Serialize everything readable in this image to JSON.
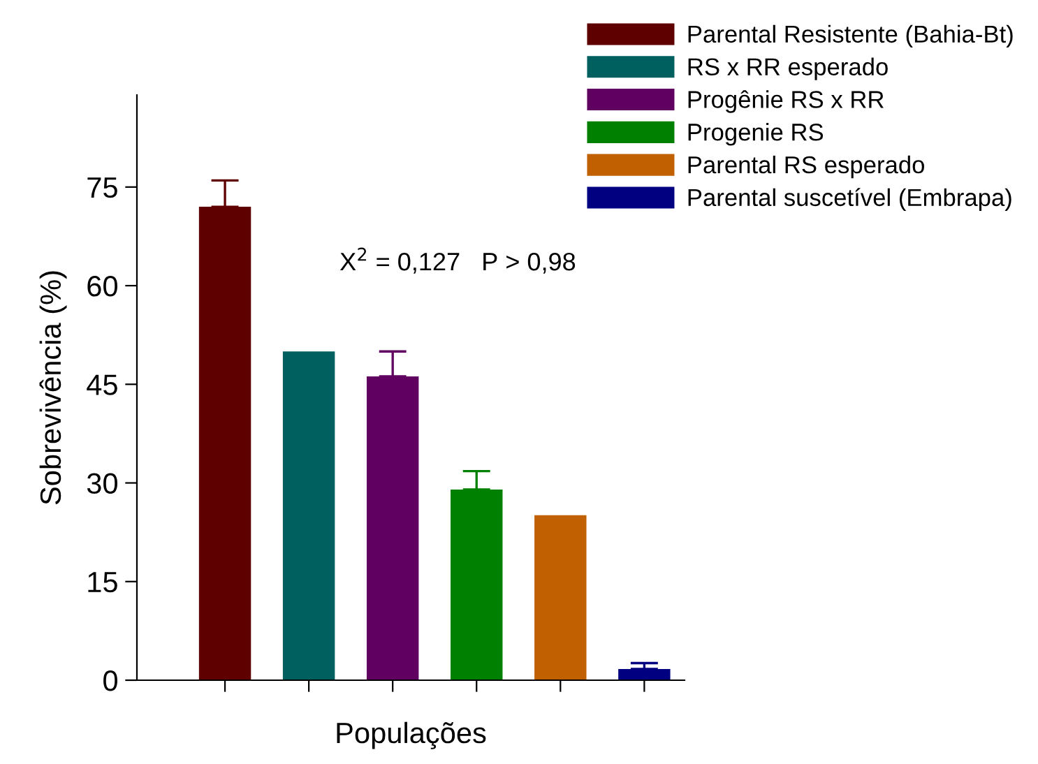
{
  "chart_data": {
    "type": "bar",
    "xlabel": "Populações",
    "ylabel": "Sobrevivência (%)",
    "categories": [
      null,
      null,
      null,
      null,
      null,
      null
    ],
    "series": [
      {
        "name": "Parental Resistente (Bahia-Bt)",
        "color": "#5e0000",
        "values": [
          72,
          null,
          null,
          null,
          null,
          null
        ],
        "errors": [
          [
            72,
            76
          ],
          null,
          null,
          null,
          null,
          null
        ]
      },
      {
        "name": "RS x RR esperado",
        "color": "#006060",
        "values": [
          null,
          50,
          null,
          null,
          null,
          null
        ]
      },
      {
        "name": "Progênie RS x RR",
        "color": "#600060",
        "values": [
          null,
          null,
          46.2,
          null,
          null,
          null
        ],
        "errors": [
          null,
          null,
          [
            46.2,
            50
          ],
          null,
          null,
          null
        ]
      },
      {
        "name": "Progenie RS",
        "color": "#008000",
        "values": [
          null,
          null,
          null,
          29,
          null,
          null
        ],
        "errors": [
          null,
          null,
          null,
          [
            29,
            31.8
          ],
          null,
          null
        ]
      },
      {
        "name": "Parental RS esperado",
        "color": "#c06000",
        "values": [
          null,
          null,
          null,
          null,
          25.1,
          null
        ]
      },
      {
        "name": "Parental suscetível (Embrapa)",
        "color": "#000080",
        "values": [
          null,
          null,
          null,
          null,
          null,
          1.7
        ],
        "errors": [
          null,
          null,
          null,
          null,
          null,
          [
            1.7,
            2.6
          ]
        ]
      }
    ],
    "ylim": [
      0,
      89
    ],
    "yticks": [
      0,
      15,
      30,
      45,
      60,
      75
    ],
    "annotations": [
      "X$^{2}$ = 0,127   P > 0,98"
    ],
    "legend": "top right",
    "grid": false
  }
}
